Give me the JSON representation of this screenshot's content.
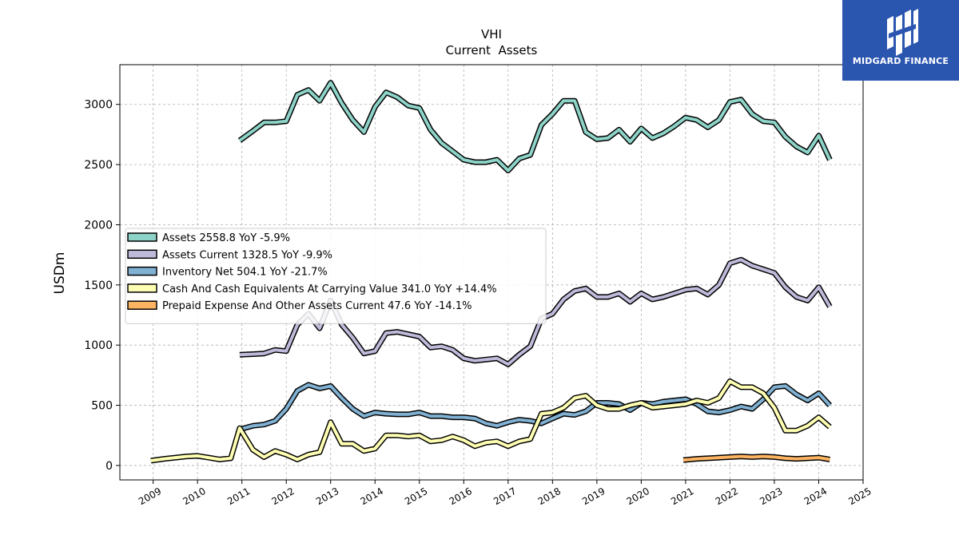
{
  "chart_data": {
    "type": "line",
    "title": "VHI",
    "subtitle": "Current  Assets",
    "ylabel": "USDm",
    "xlabel": "",
    "ylim": [
      -120,
      3330
    ],
    "xlim": [
      2008.25,
      2025.0
    ],
    "yticks": [
      0,
      500,
      1000,
      1500,
      2000,
      2500,
      3000
    ],
    "xticks": [
      "2009",
      "2010",
      "2011",
      "2012",
      "2013",
      "2014",
      "2015",
      "2016",
      "2017",
      "2018",
      "2019",
      "2020",
      "2021",
      "2022",
      "2023",
      "2024",
      "2025"
    ],
    "grid": true,
    "legend_position": "center-left",
    "series": [
      {
        "name": "Assets",
        "legend": "Assets  2558.8 YoY -5.9%",
        "color": "#8dd3c7",
        "points": [
          [
            2010.95,
            2700
          ],
          [
            2011.25,
            2780
          ],
          [
            2011.5,
            2850
          ],
          [
            2011.75,
            2850
          ],
          [
            2012.0,
            2860
          ],
          [
            2012.25,
            3080
          ],
          [
            2012.5,
            3120
          ],
          [
            2012.75,
            3030
          ],
          [
            2013.0,
            3180
          ],
          [
            2013.25,
            3010
          ],
          [
            2013.5,
            2870
          ],
          [
            2013.75,
            2770
          ],
          [
            2014.0,
            2980
          ],
          [
            2014.25,
            3100
          ],
          [
            2014.5,
            3060
          ],
          [
            2014.75,
            2990
          ],
          [
            2015.0,
            2970
          ],
          [
            2015.25,
            2790
          ],
          [
            2015.5,
            2680
          ],
          [
            2015.75,
            2610
          ],
          [
            2016.0,
            2540
          ],
          [
            2016.25,
            2520
          ],
          [
            2016.5,
            2520
          ],
          [
            2016.75,
            2540
          ],
          [
            2017.0,
            2450
          ],
          [
            2017.25,
            2550
          ],
          [
            2017.5,
            2580
          ],
          [
            2017.75,
            2830
          ],
          [
            2018.0,
            2920
          ],
          [
            2018.25,
            3030
          ],
          [
            2018.5,
            3030
          ],
          [
            2018.75,
            2770
          ],
          [
            2019.0,
            2710
          ],
          [
            2019.25,
            2720
          ],
          [
            2019.5,
            2790
          ],
          [
            2019.75,
            2690
          ],
          [
            2020.0,
            2800
          ],
          [
            2020.25,
            2720
          ],
          [
            2020.5,
            2760
          ],
          [
            2020.75,
            2820
          ],
          [
            2021.0,
            2890
          ],
          [
            2021.25,
            2870
          ],
          [
            2021.5,
            2810
          ],
          [
            2021.75,
            2870
          ],
          [
            2022.0,
            3020
          ],
          [
            2022.25,
            3040
          ],
          [
            2022.5,
            2920
          ],
          [
            2022.75,
            2860
          ],
          [
            2023.0,
            2850
          ],
          [
            2023.25,
            2730
          ],
          [
            2023.5,
            2650
          ],
          [
            2023.75,
            2600
          ],
          [
            2024.0,
            2740
          ],
          [
            2024.25,
            2540
          ]
        ]
      },
      {
        "name": "Assets Current",
        "legend": "Assets Current  1328.5 YoY -9.9%",
        "color": "#bebada",
        "points": [
          [
            2010.95,
            920
          ],
          [
            2011.25,
            925
          ],
          [
            2011.5,
            930
          ],
          [
            2011.75,
            960
          ],
          [
            2012.0,
            950
          ],
          [
            2012.25,
            1170
          ],
          [
            2012.5,
            1260
          ],
          [
            2012.75,
            1140
          ],
          [
            2013.0,
            1370
          ],
          [
            2013.25,
            1170
          ],
          [
            2013.5,
            1060
          ],
          [
            2013.75,
            930
          ],
          [
            2014.0,
            950
          ],
          [
            2014.25,
            1100
          ],
          [
            2014.5,
            1110
          ],
          [
            2014.75,
            1090
          ],
          [
            2015.0,
            1070
          ],
          [
            2015.25,
            980
          ],
          [
            2015.5,
            990
          ],
          [
            2015.75,
            960
          ],
          [
            2016.0,
            890
          ],
          [
            2016.25,
            870
          ],
          [
            2016.5,
            880
          ],
          [
            2016.75,
            890
          ],
          [
            2017.0,
            840
          ],
          [
            2017.25,
            920
          ],
          [
            2017.5,
            990
          ],
          [
            2017.75,
            1220
          ],
          [
            2018.0,
            1260
          ],
          [
            2018.25,
            1380
          ],
          [
            2018.5,
            1450
          ],
          [
            2018.75,
            1470
          ],
          [
            2019.0,
            1400
          ],
          [
            2019.25,
            1400
          ],
          [
            2019.5,
            1430
          ],
          [
            2019.75,
            1360
          ],
          [
            2020.0,
            1430
          ],
          [
            2020.25,
            1380
          ],
          [
            2020.5,
            1400
          ],
          [
            2020.75,
            1430
          ],
          [
            2021.0,
            1460
          ],
          [
            2021.25,
            1470
          ],
          [
            2021.5,
            1420
          ],
          [
            2021.75,
            1500
          ],
          [
            2022.0,
            1680
          ],
          [
            2022.25,
            1710
          ],
          [
            2022.5,
            1660
          ],
          [
            2022.75,
            1630
          ],
          [
            2023.0,
            1600
          ],
          [
            2023.25,
            1480
          ],
          [
            2023.5,
            1400
          ],
          [
            2023.75,
            1370
          ],
          [
            2024.0,
            1480
          ],
          [
            2024.25,
            1320
          ]
        ]
      },
      {
        "name": "Inventory Net",
        "legend": "Inventory Net  504.1 YoY -21.7%",
        "color": "#80b1d3",
        "points": [
          [
            2010.95,
            300
          ],
          [
            2011.25,
            330
          ],
          [
            2011.5,
            340
          ],
          [
            2011.75,
            370
          ],
          [
            2012.0,
            470
          ],
          [
            2012.25,
            620
          ],
          [
            2012.5,
            670
          ],
          [
            2012.75,
            640
          ],
          [
            2013.0,
            660
          ],
          [
            2013.25,
            560
          ],
          [
            2013.5,
            470
          ],
          [
            2013.75,
            410
          ],
          [
            2014.0,
            440
          ],
          [
            2014.25,
            430
          ],
          [
            2014.5,
            425
          ],
          [
            2014.75,
            425
          ],
          [
            2015.0,
            440
          ],
          [
            2015.25,
            410
          ],
          [
            2015.5,
            410
          ],
          [
            2015.75,
            400
          ],
          [
            2016.0,
            400
          ],
          [
            2016.25,
            390
          ],
          [
            2016.5,
            350
          ],
          [
            2016.75,
            330
          ],
          [
            2017.0,
            360
          ],
          [
            2017.25,
            380
          ],
          [
            2017.5,
            370
          ],
          [
            2017.75,
            350
          ],
          [
            2018.0,
            390
          ],
          [
            2018.25,
            430
          ],
          [
            2018.5,
            420
          ],
          [
            2018.75,
            450
          ],
          [
            2019.0,
            520
          ],
          [
            2019.25,
            520
          ],
          [
            2019.5,
            510
          ],
          [
            2019.75,
            460
          ],
          [
            2020.0,
            520
          ],
          [
            2020.25,
            510
          ],
          [
            2020.5,
            530
          ],
          [
            2020.75,
            540
          ],
          [
            2021.0,
            550
          ],
          [
            2021.25,
            510
          ],
          [
            2021.5,
            450
          ],
          [
            2021.75,
            440
          ],
          [
            2022.0,
            460
          ],
          [
            2022.25,
            490
          ],
          [
            2022.5,
            470
          ],
          [
            2022.75,
            550
          ],
          [
            2023.0,
            650
          ],
          [
            2023.25,
            660
          ],
          [
            2023.5,
            590
          ],
          [
            2023.75,
            540
          ],
          [
            2024.0,
            600
          ],
          [
            2024.25,
            500
          ]
        ]
      },
      {
        "name": "Cash And Cash Equivalents At Carrying Value",
        "legend": "Cash And Cash Equivalents At Carrying Value  341.0 YoY +14.4%",
        "color": "#ffffb3",
        "points": [
          [
            2008.95,
            40
          ],
          [
            2009.25,
            55
          ],
          [
            2009.5,
            65
          ],
          [
            2009.75,
            75
          ],
          [
            2010.0,
            80
          ],
          [
            2010.25,
            65
          ],
          [
            2010.5,
            50
          ],
          [
            2010.75,
            60
          ],
          [
            2010.95,
            310
          ],
          [
            2011.25,
            130
          ],
          [
            2011.5,
            70
          ],
          [
            2011.75,
            120
          ],
          [
            2012.0,
            90
          ],
          [
            2012.25,
            50
          ],
          [
            2012.5,
            90
          ],
          [
            2012.75,
            110
          ],
          [
            2013.0,
            360
          ],
          [
            2013.25,
            180
          ],
          [
            2013.5,
            180
          ],
          [
            2013.75,
            120
          ],
          [
            2014.0,
            140
          ],
          [
            2014.25,
            250
          ],
          [
            2014.5,
            250
          ],
          [
            2014.75,
            240
          ],
          [
            2015.0,
            250
          ],
          [
            2015.25,
            200
          ],
          [
            2015.5,
            210
          ],
          [
            2015.75,
            240
          ],
          [
            2016.0,
            210
          ],
          [
            2016.25,
            160
          ],
          [
            2016.5,
            190
          ],
          [
            2016.75,
            200
          ],
          [
            2017.0,
            160
          ],
          [
            2017.25,
            200
          ],
          [
            2017.5,
            220
          ],
          [
            2017.75,
            430
          ],
          [
            2018.0,
            440
          ],
          [
            2018.25,
            480
          ],
          [
            2018.5,
            560
          ],
          [
            2018.75,
            580
          ],
          [
            2019.0,
            500
          ],
          [
            2019.25,
            470
          ],
          [
            2019.5,
            470
          ],
          [
            2019.75,
            500
          ],
          [
            2020.0,
            520
          ],
          [
            2020.25,
            480
          ],
          [
            2020.5,
            490
          ],
          [
            2020.75,
            500
          ],
          [
            2021.0,
            510
          ],
          [
            2021.25,
            540
          ],
          [
            2021.5,
            520
          ],
          [
            2021.75,
            560
          ],
          [
            2022.0,
            700
          ],
          [
            2022.25,
            650
          ],
          [
            2022.5,
            650
          ],
          [
            2022.75,
            600
          ],
          [
            2023.0,
            480
          ],
          [
            2023.25,
            290
          ],
          [
            2023.5,
            290
          ],
          [
            2023.75,
            330
          ],
          [
            2024.0,
            400
          ],
          [
            2024.25,
            320
          ]
        ]
      },
      {
        "name": "Prepaid Expense And Other Assets Current",
        "legend": "Prepaid Expense And Other Assets Current  47.6 YoY -14.1%",
        "color": "#fdb462",
        "points": [
          [
            2020.95,
            45
          ],
          [
            2021.25,
            55
          ],
          [
            2021.5,
            60
          ],
          [
            2021.75,
            65
          ],
          [
            2022.0,
            70
          ],
          [
            2022.25,
            75
          ],
          [
            2022.5,
            70
          ],
          [
            2022.75,
            75
          ],
          [
            2023.0,
            70
          ],
          [
            2023.25,
            60
          ],
          [
            2023.5,
            55
          ],
          [
            2023.75,
            60
          ],
          [
            2024.0,
            65
          ],
          [
            2024.25,
            50
          ]
        ]
      }
    ]
  },
  "logo": {
    "text": "MIDGARD FINANCE",
    "color": "#2b56b0"
  }
}
